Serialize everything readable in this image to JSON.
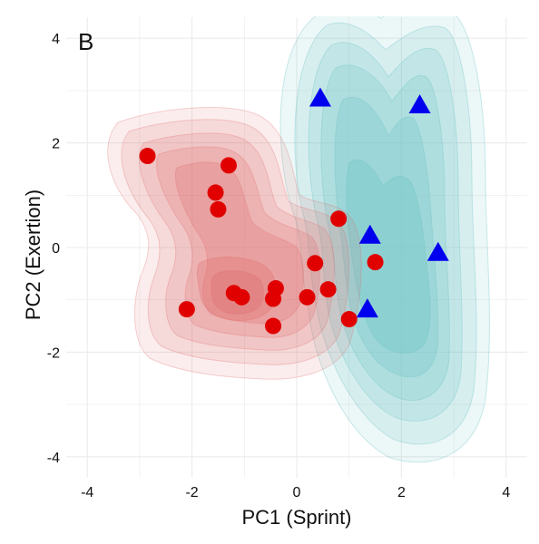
{
  "chart_data": {
    "type": "scatter",
    "panel_label": "B",
    "xlabel": "PC1 (Sprint)",
    "ylabel": "PC2 (Exertion)",
    "xlim": [
      -4.4,
      4.4
    ],
    "ylim": [
      -4.4,
      4.4
    ],
    "x_ticks": [
      -4,
      -2,
      0,
      2,
      4
    ],
    "y_ticks": [
      -4,
      -2,
      0,
      2,
      4
    ],
    "grid": true,
    "legend": "none",
    "colors": {
      "group1_points": "#e00000",
      "group1_density": "#e06d6d",
      "group2_points": "#0000ee",
      "group2_density": "#6cc3c5",
      "grid": "#ebebeb"
    },
    "series": [
      {
        "marker": "circle",
        "points": [
          {
            "x": -2.85,
            "y": 1.75
          },
          {
            "x": -1.3,
            "y": 1.57
          },
          {
            "x": -1.55,
            "y": 1.05
          },
          {
            "x": -1.5,
            "y": 0.73
          },
          {
            "x": 0.8,
            "y": 0.55
          },
          {
            "x": 0.35,
            "y": -0.3
          },
          {
            "x": 1.5,
            "y": -0.28
          },
          {
            "x": -0.4,
            "y": -0.78
          },
          {
            "x": 0.6,
            "y": -0.8
          },
          {
            "x": -1.2,
            "y": -0.87
          },
          {
            "x": -1.05,
            "y": -0.95
          },
          {
            "x": -0.45,
            "y": -0.98
          },
          {
            "x": 0.2,
            "y": -0.95
          },
          {
            "x": -2.1,
            "y": -1.18
          },
          {
            "x": 1.0,
            "y": -1.37
          },
          {
            "x": -0.45,
            "y": -1.5
          }
        ]
      },
      {
        "marker": "triangle",
        "points": [
          {
            "x": 0.45,
            "y": 2.85
          },
          {
            "x": 2.35,
            "y": 2.72
          },
          {
            "x": 1.4,
            "y": 0.23
          },
          {
            "x": 2.7,
            "y": -0.1
          },
          {
            "x": 1.35,
            "y": -1.18
          }
        ]
      }
    ]
  }
}
